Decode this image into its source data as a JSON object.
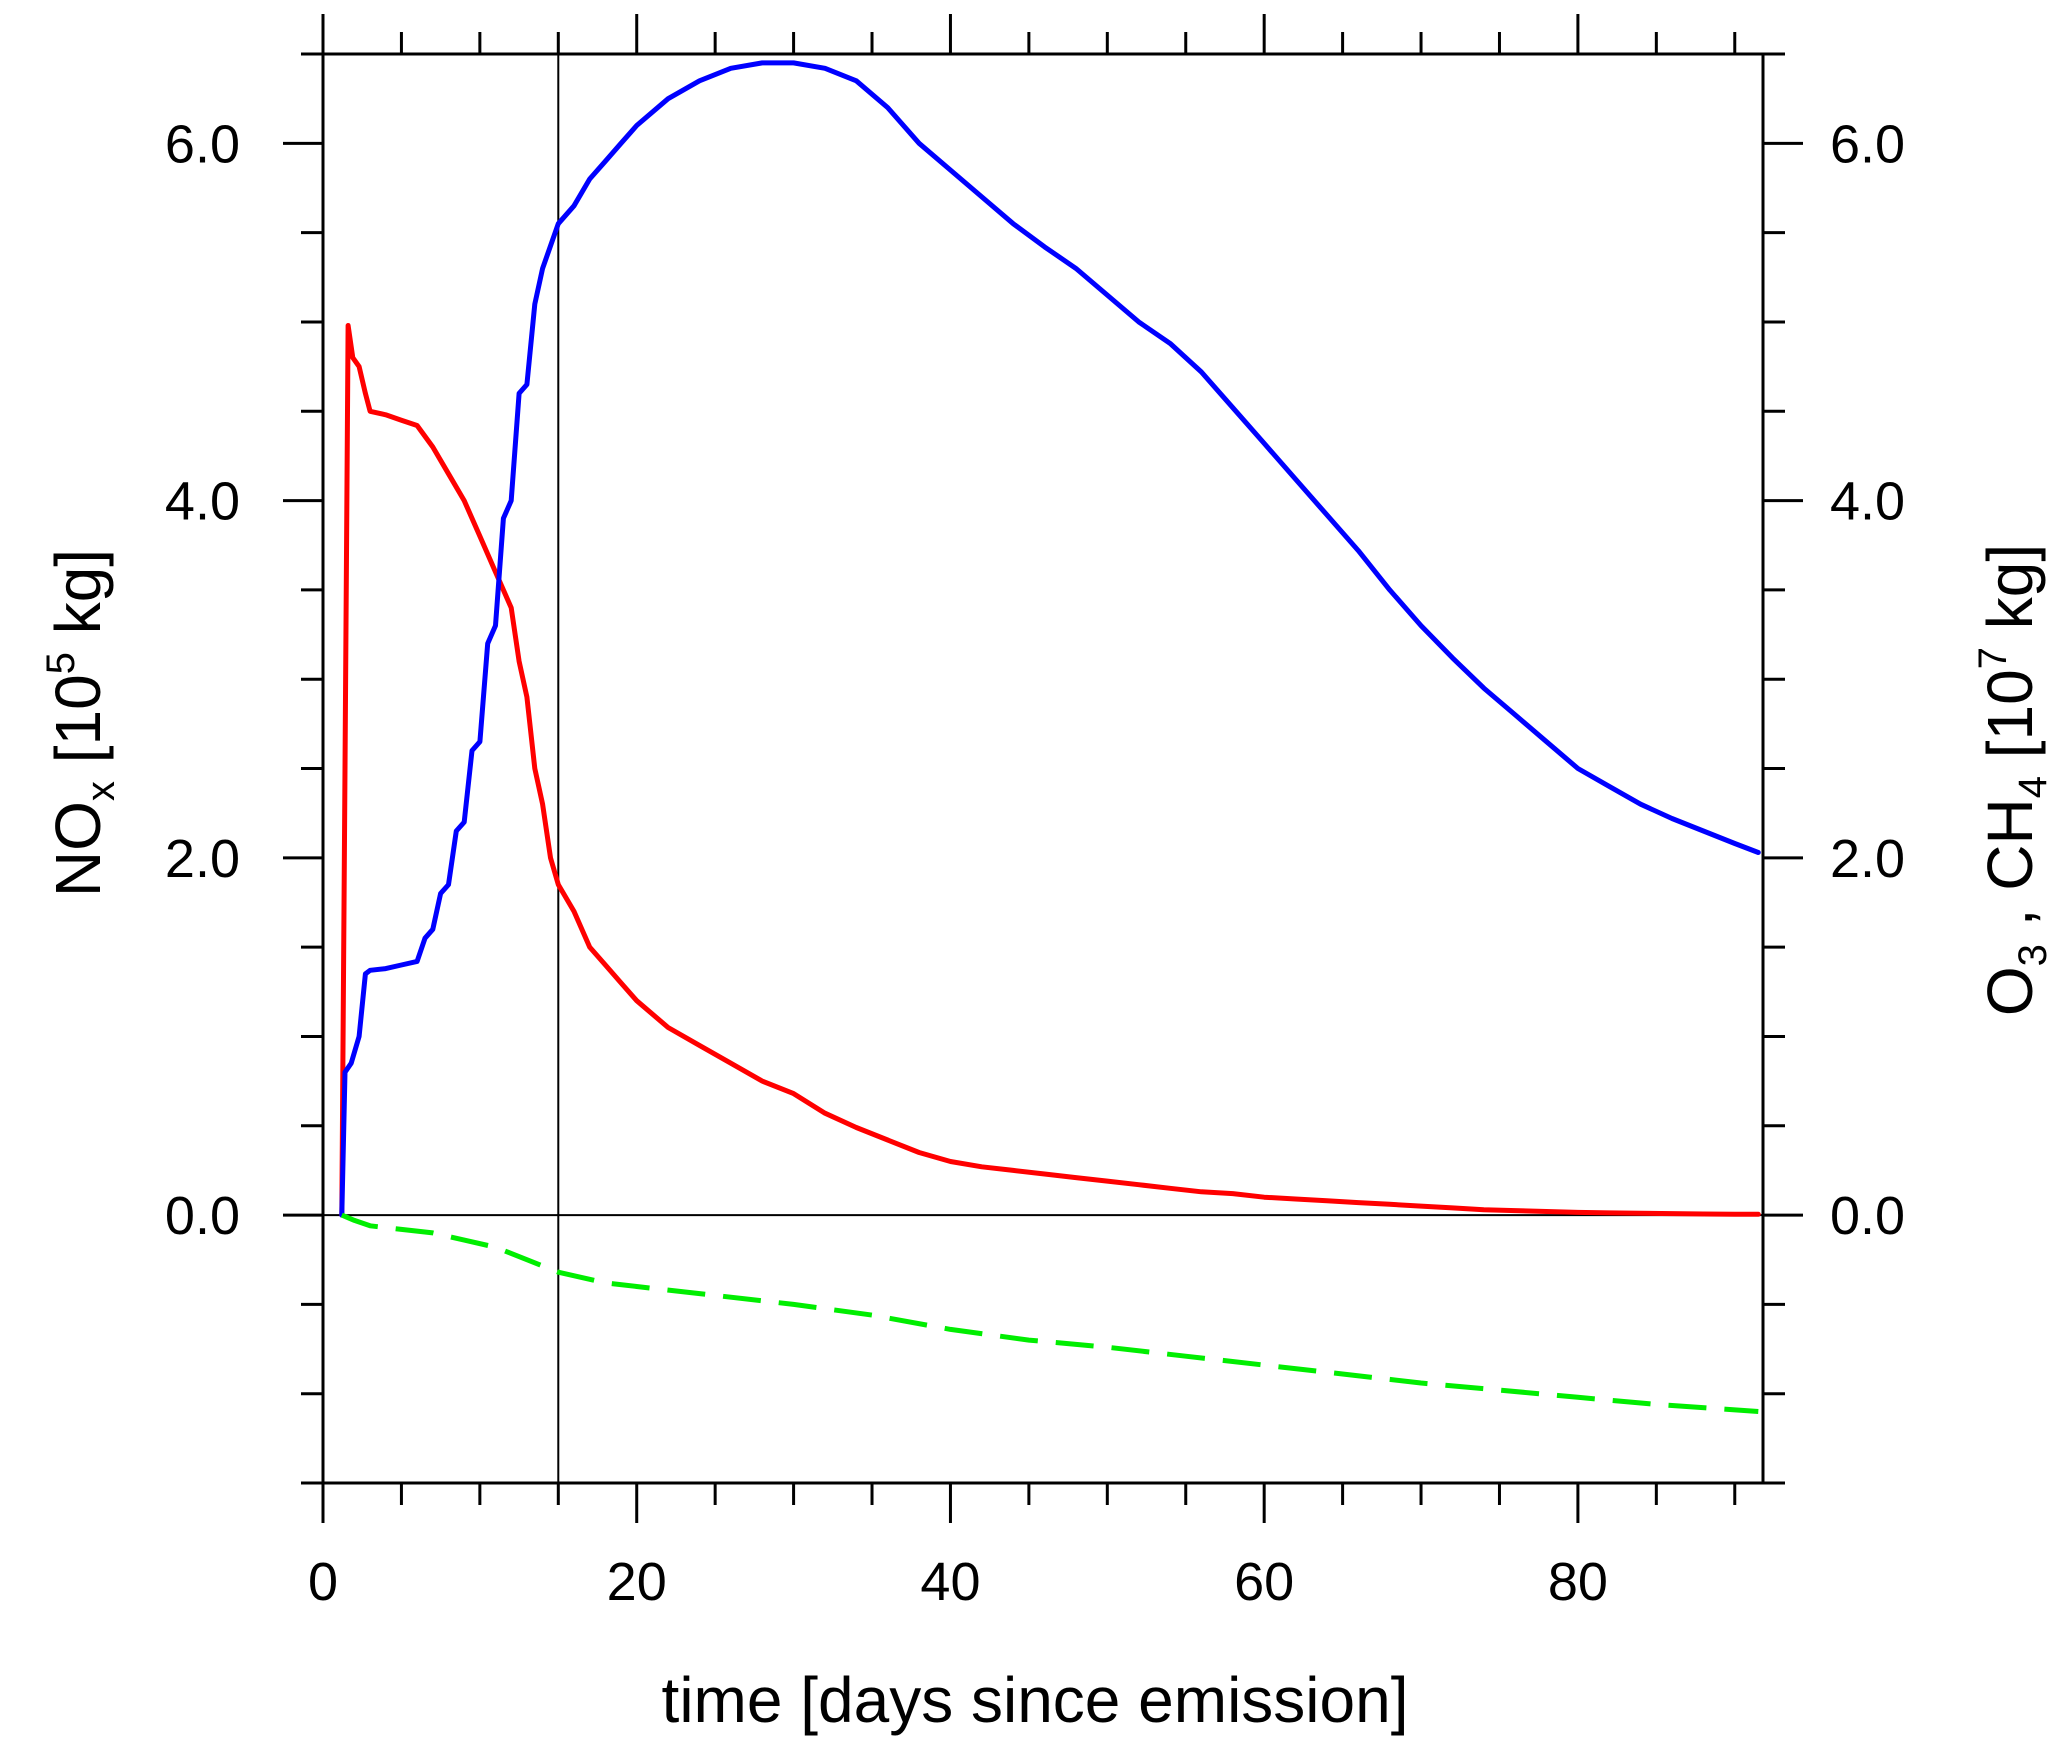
{
  "chart_data": {
    "type": "line",
    "xlabel": "time [days since emission]",
    "ylabel_left": {
      "main": "NO",
      "sub": "x",
      "unit_prefix": " [10",
      "sup": "5",
      "unit_suffix": " kg]"
    },
    "ylabel_right": {
      "part1": "O",
      "sub1": "3",
      "part2": " , CH",
      "sub2": "4",
      "unit_prefix": " [10",
      "sup": "7",
      "unit_suffix": " kg]"
    },
    "x_ticks": [
      "0",
      "20",
      "40",
      "60",
      "80"
    ],
    "y_left_ticks": [
      "0.0",
      "2.0",
      "4.0",
      "6.0"
    ],
    "y_right_ticks": [
      "0.0",
      "2.0",
      "4.0",
      "6.0"
    ],
    "xlim": [
      0,
      91.8
    ],
    "ylim": [
      -1.5,
      6.5
    ],
    "vertical_reference_line_x": 15,
    "zero_line": true,
    "grid": false,
    "legend": "none",
    "series": [
      {
        "axis": "left",
        "color": "#ff0000",
        "style": "solid",
        "x": [
          1.2,
          1.4,
          1.6,
          1.9,
          2.3,
          2.7,
          3.0,
          4.0,
          5.0,
          6.0,
          7.0,
          8.0,
          9.0,
          10.0,
          11.0,
          12.0,
          12.5,
          13.0,
          13.5,
          14.0,
          14.5,
          15.0,
          16.0,
          17.0,
          18.0,
          19.0,
          20.0,
          22.0,
          24.0,
          26.0,
          28.0,
          30.0,
          32.0,
          34.0,
          36.0,
          38.0,
          40.0,
          42.0,
          44.0,
          46.0,
          48.0,
          50.0,
          52.0,
          54.0,
          56.0,
          58.0,
          60.0,
          62.0,
          64.0,
          66.0,
          68.0,
          70.0,
          72.0,
          74.0,
          76.0,
          78.0,
          80.0,
          82.0,
          84.0,
          86.0,
          88.0,
          90.0,
          91.5
        ],
        "y": [
          0.0,
          2.5,
          4.98,
          4.8,
          4.75,
          4.6,
          4.5,
          4.48,
          4.45,
          4.42,
          4.3,
          4.15,
          4.0,
          3.8,
          3.6,
          3.4,
          3.1,
          2.9,
          2.5,
          2.3,
          2.0,
          1.85,
          1.7,
          1.5,
          1.4,
          1.3,
          1.2,
          1.05,
          0.95,
          0.85,
          0.75,
          0.68,
          0.57,
          0.49,
          0.42,
          0.35,
          0.3,
          0.27,
          0.25,
          0.23,
          0.21,
          0.19,
          0.17,
          0.15,
          0.13,
          0.12,
          0.1,
          0.09,
          0.08,
          0.07,
          0.06,
          0.05,
          0.04,
          0.03,
          0.025,
          0.02,
          0.015,
          0.012,
          0.01,
          0.008,
          0.006,
          0.005,
          0.004
        ]
      },
      {
        "axis": "right",
        "color": "#0000ff",
        "style": "solid",
        "x": [
          1.2,
          1.4,
          1.8,
          2.3,
          2.7,
          3.0,
          4.0,
          5.0,
          6.0,
          6.5,
          7.0,
          7.5,
          8.0,
          8.5,
          9.0,
          9.5,
          10.0,
          10.5,
          11.0,
          11.5,
          12.0,
          12.5,
          13.0,
          13.5,
          14.0,
          15.0,
          16.0,
          17.0,
          18.0,
          19.0,
          20.0,
          22.0,
          24.0,
          26.0,
          28.0,
          30.0,
          32.0,
          34.0,
          36.0,
          38.0,
          40.0,
          42.0,
          44.0,
          46.0,
          48.0,
          50.0,
          52.0,
          54.0,
          56.0,
          58.0,
          60.0,
          62.0,
          64.0,
          66.0,
          68.0,
          70.0,
          72.0,
          74.0,
          76.0,
          78.0,
          80.0,
          82.0,
          84.0,
          86.0,
          88.0,
          90.0,
          91.5
        ],
        "y": [
          0.0,
          0.8,
          0.85,
          1.0,
          1.35,
          1.37,
          1.38,
          1.4,
          1.42,
          1.55,
          1.6,
          1.8,
          1.85,
          2.15,
          2.2,
          2.6,
          2.65,
          3.2,
          3.3,
          3.9,
          4.0,
          4.6,
          4.65,
          5.1,
          5.3,
          5.55,
          5.65,
          5.8,
          5.9,
          6.0,
          6.1,
          6.25,
          6.35,
          6.42,
          6.45,
          6.45,
          6.42,
          6.35,
          6.2,
          6.0,
          5.85,
          5.7,
          5.55,
          5.42,
          5.3,
          5.15,
          5.0,
          4.88,
          4.72,
          4.52,
          4.32,
          4.12,
          3.92,
          3.72,
          3.5,
          3.3,
          3.12,
          2.95,
          2.8,
          2.65,
          2.5,
          2.4,
          2.3,
          2.22,
          2.15,
          2.08,
          2.03
        ]
      },
      {
        "axis": "right",
        "color": "#00ee00",
        "style": "dashed",
        "x": [
          1.2,
          2.0,
          3.0,
          5.0,
          7.0,
          9.0,
          11.0,
          13.0,
          15.0,
          18.0,
          20.0,
          25.0,
          30.0,
          35.0,
          40.0,
          45.0,
          50.0,
          55.0,
          60.0,
          65.0,
          70.0,
          75.0,
          80.0,
          85.0,
          91.5
        ],
        "y": [
          0.0,
          -0.03,
          -0.06,
          -0.08,
          -0.1,
          -0.14,
          -0.18,
          -0.25,
          -0.32,
          -0.38,
          -0.4,
          -0.45,
          -0.5,
          -0.56,
          -0.64,
          -0.7,
          -0.74,
          -0.79,
          -0.84,
          -0.89,
          -0.94,
          -0.98,
          -1.02,
          -1.06,
          -1.1
        ]
      }
    ]
  }
}
